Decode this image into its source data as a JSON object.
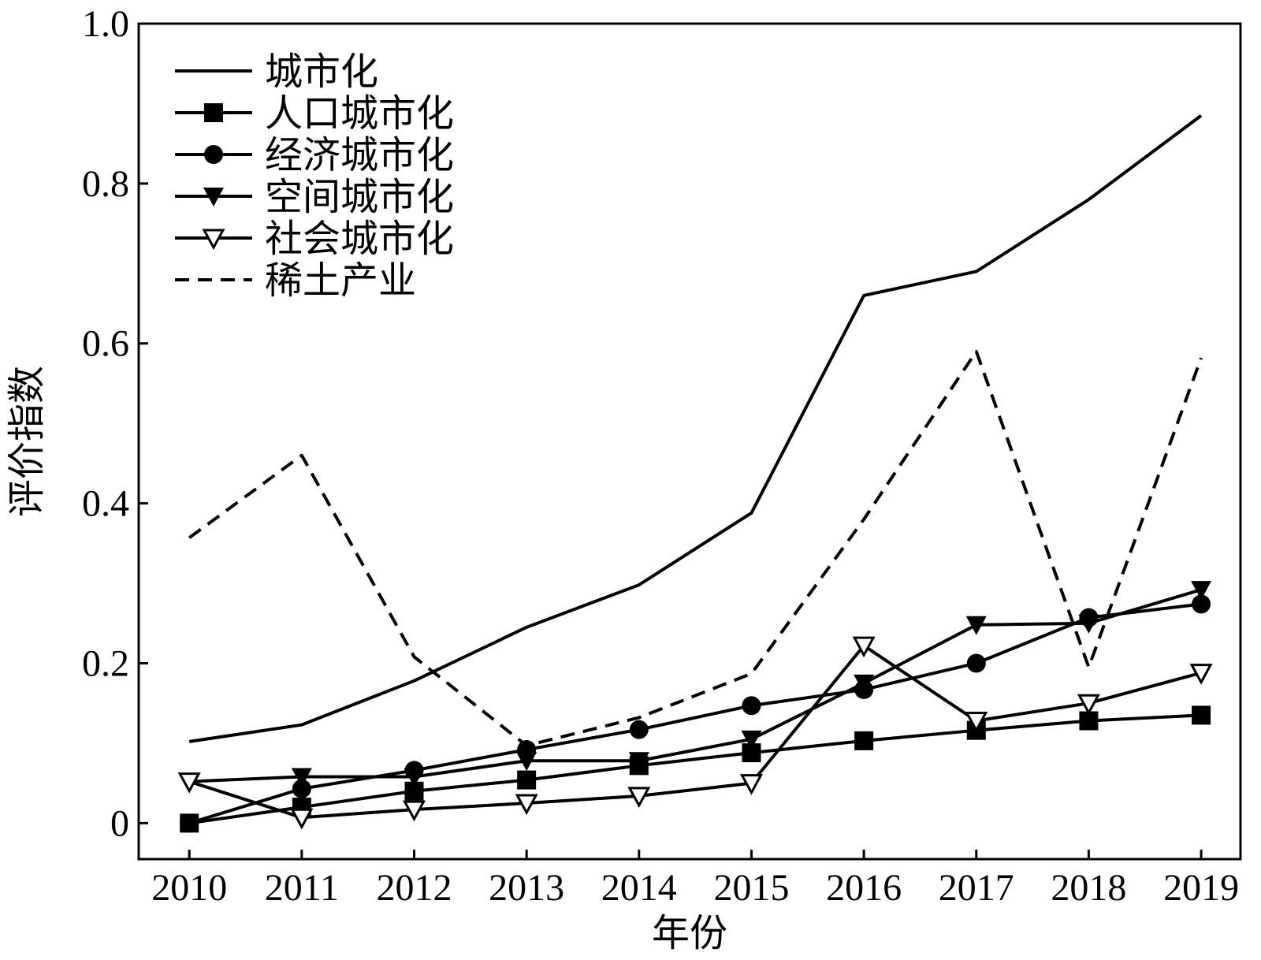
{
  "chart_data": {
    "type": "line",
    "xlabel": "年份",
    "ylabel": "评价指数",
    "x": [
      2010,
      2011,
      2012,
      2013,
      2014,
      2015,
      2016,
      2017,
      2018,
      2019
    ],
    "xtick_labels": [
      "2010",
      "2011",
      "2012",
      "2013",
      "2014",
      "2015",
      "2016",
      "2017",
      "2018",
      "2019"
    ],
    "xlim": [
      2009.55,
      2019.35
    ],
    "ylim": [
      -0.045,
      1.0
    ],
    "yticks": [
      0,
      0.2,
      0.4,
      0.6,
      0.8,
      1.0
    ],
    "ytick_labels": [
      "0",
      "0.2",
      "0.4",
      "0.6",
      "0.8",
      "1.0"
    ],
    "grid": false,
    "legend_position": "top-left",
    "series": [
      {
        "name": "城市化",
        "marker": "none",
        "dash": "solid",
        "values": [
          0.102,
          0.123,
          0.178,
          0.245,
          0.298,
          0.388,
          0.66,
          0.69,
          0.78,
          0.885
        ]
      },
      {
        "name": "人口城市化",
        "marker": "square",
        "dash": "solid",
        "values": [
          0.0,
          0.02,
          0.04,
          0.054,
          0.072,
          0.088,
          0.103,
          0.116,
          0.128,
          0.135
        ]
      },
      {
        "name": "经济城市化",
        "marker": "circle",
        "dash": "solid",
        "values": [
          0.0,
          0.043,
          0.066,
          0.092,
          0.117,
          0.147,
          0.167,
          0.2,
          0.257,
          0.274
        ]
      },
      {
        "name": "空间城市化",
        "marker": "triangle-down-filled",
        "dash": "solid",
        "values": [
          0.052,
          0.058,
          0.058,
          0.078,
          0.078,
          0.105,
          0.175,
          0.248,
          0.25,
          0.292
        ]
      },
      {
        "name": "社会城市化",
        "marker": "triangle-down-open",
        "dash": "solid",
        "values": [
          0.052,
          0.007,
          0.017,
          0.025,
          0.034,
          0.05,
          0.222,
          0.128,
          0.15,
          0.188
        ]
      },
      {
        "name": "稀土产业",
        "marker": "none",
        "dash": "dashed",
        "values": [
          0.357,
          0.46,
          0.208,
          0.097,
          0.132,
          0.187,
          0.38,
          0.59,
          0.195,
          0.582
        ]
      }
    ]
  }
}
